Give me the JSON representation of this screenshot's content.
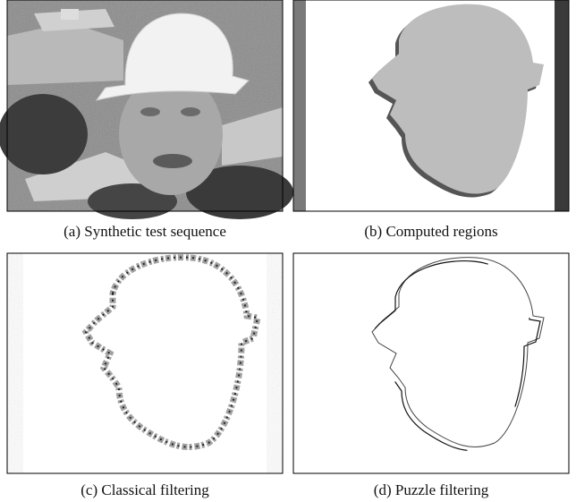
{
  "figure": {
    "captions": [
      "(a) Synthetic test sequence",
      "(b) Computed regions",
      "(c) Classical filtering",
      "(d) Puzzle filtering"
    ]
  }
}
